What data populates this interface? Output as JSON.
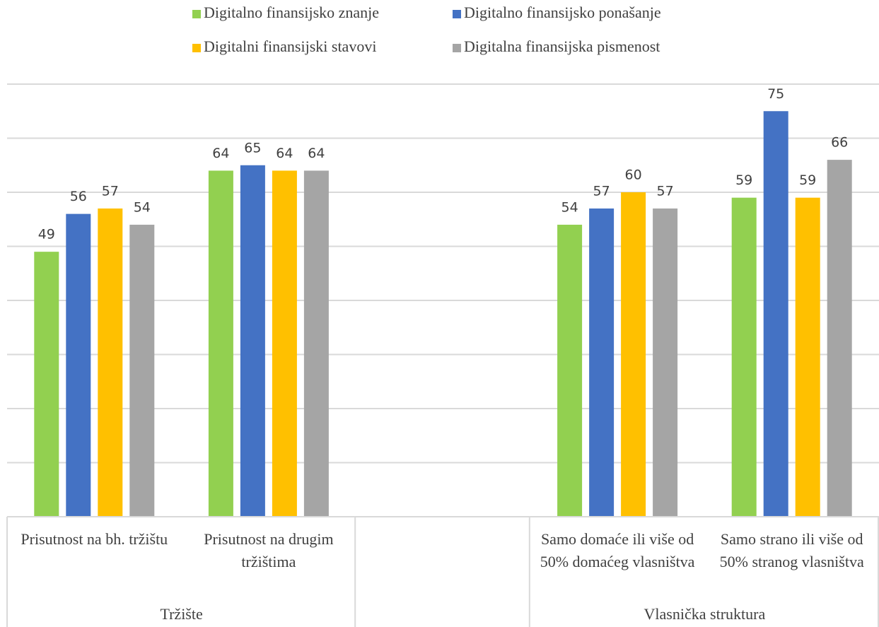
{
  "chart_data": {
    "type": "bar",
    "categories": [
      "Prisutnost na bh. tržištu",
      "Prisutnost na drugim tržištima",
      null,
      "Samo domaće ili više od 50% domaćeg vlasništva",
      "Samo strano ili više od 50% stranog vlasništva"
    ],
    "group_labels": [
      "Tržište",
      null,
      "Vlasnička struktura"
    ],
    "series": [
      {
        "name": "Digitalno finansijsko znanje",
        "color": "#92d050",
        "values": [
          49,
          64,
          null,
          54,
          59
        ]
      },
      {
        "name": "Digitalno finansijsko ponašanje",
        "color": "#4472c4",
        "values": [
          56,
          65,
          null,
          57,
          75
        ]
      },
      {
        "name": "Digitalni finansijski stavovi",
        "color": "#ffc000",
        "values": [
          57,
          64,
          null,
          60,
          59
        ]
      },
      {
        "name": "Digitalna finansijska pismenost",
        "color": "#a5a5a5",
        "values": [
          54,
          64,
          null,
          57,
          66
        ]
      }
    ],
    "ylim": [
      0,
      80
    ],
    "yticks": [
      0,
      10,
      20,
      30,
      40,
      50,
      60,
      70,
      80
    ],
    "grid": true,
    "legend": "top"
  }
}
